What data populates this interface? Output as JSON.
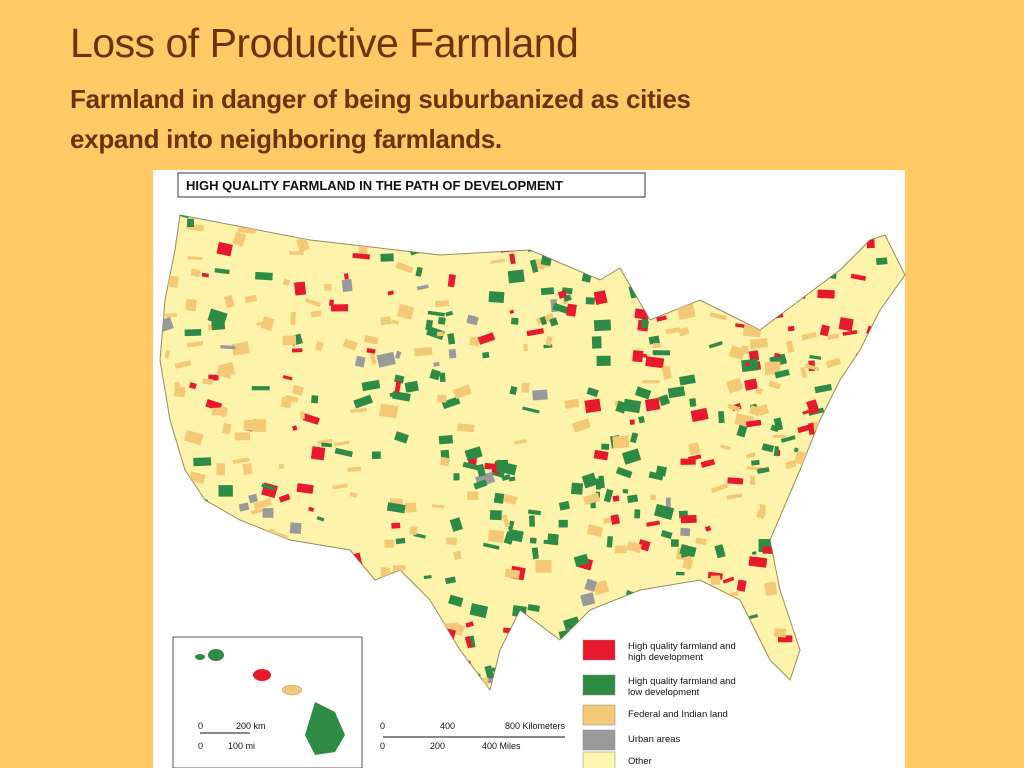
{
  "slide": {
    "title": "Loss of Productive Farmland",
    "subtitle_lines": [
      "Farmland in danger of being suburbanized as cities",
      "expand into neighboring farmlands."
    ]
  },
  "map": {
    "title": "HIGH QUALITY FARMLAND IN THE PATH OF DEVELOPMENT",
    "legend": [
      {
        "lines": [
          "High quality farmland and",
          "high development"
        ],
        "color": "#e8192c"
      },
      {
        "lines": [
          "High quality farmland and",
          "low development"
        ],
        "color": "#2e8b45"
      },
      {
        "lines": [
          "Federal and Indian land"
        ],
        "color": "#f3c877"
      },
      {
        "lines": [
          "Urban areas"
        ],
        "color": "#9a9a9a"
      },
      {
        "lines": [
          "Other"
        ],
        "color": "#fdf6b0"
      }
    ],
    "hawaii_scale": {
      "km": [
        "0",
        "200 km"
      ],
      "mi": [
        "0",
        "100 mi"
      ]
    },
    "scale": {
      "km": [
        "0",
        "400",
        "800 Kilometers"
      ],
      "mi": [
        "0",
        "200",
        "400 Miles"
      ]
    }
  }
}
